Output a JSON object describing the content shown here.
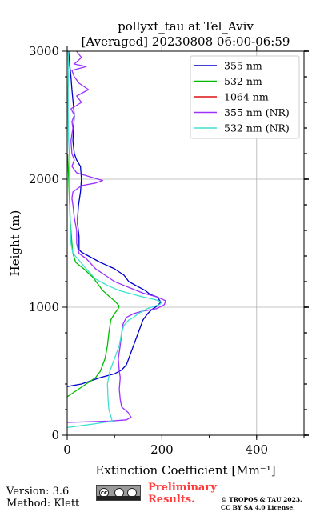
{
  "chart_data": {
    "type": "line",
    "title_line1": "pollyxt_tau at Tel_Aviv",
    "title_line2": "[Averaged] 20230808 06:00-06:59",
    "xlabel": "Extinction Coefficient [Mm⁻¹]",
    "ylabel": "Height (m)",
    "xlim": [
      0,
      500
    ],
    "ylim": [
      0,
      3000
    ],
    "x_ticks": [
      "0",
      "200",
      "400"
    ],
    "y_ticks": [
      "0",
      "1000",
      "2000",
      "3000"
    ],
    "grid": true,
    "legend_position": "top-right",
    "series": [
      {
        "name": "355 nm",
        "color": "#0000cc",
        "points": [
          [
            0,
            380
          ],
          [
            30,
            400
          ],
          [
            70,
            450
          ],
          [
            100,
            480
          ],
          [
            115,
            510
          ],
          [
            125,
            550
          ],
          [
            130,
            600
          ],
          [
            140,
            700
          ],
          [
            150,
            800
          ],
          [
            160,
            900
          ],
          [
            170,
            950
          ],
          [
            178,
            980
          ],
          [
            190,
            1010
          ],
          [
            198,
            1040
          ],
          [
            190,
            1080
          ],
          [
            175,
            1100
          ],
          [
            165,
            1130
          ],
          [
            150,
            1160
          ],
          [
            130,
            1200
          ],
          [
            120,
            1250
          ],
          [
            100,
            1300
          ],
          [
            70,
            1350
          ],
          [
            45,
            1400
          ],
          [
            30,
            1430
          ],
          [
            25,
            1450
          ],
          [
            25,
            1550
          ],
          [
            22,
            1650
          ],
          [
            22,
            1700
          ],
          [
            24,
            1800
          ],
          [
            28,
            1900
          ],
          [
            30,
            2000
          ],
          [
            28,
            2100
          ],
          [
            20,
            2150
          ],
          [
            15,
            2200
          ],
          [
            12,
            2300
          ],
          [
            15,
            2500
          ],
          [
            10,
            2700
          ],
          [
            8,
            2800
          ],
          [
            5,
            2900
          ],
          [
            3,
            3000
          ]
        ]
      },
      {
        "name": "532 nm",
        "color": "#00bb00",
        "points": [
          [
            0,
            300
          ],
          [
            20,
            350
          ],
          [
            40,
            400
          ],
          [
            60,
            450
          ],
          [
            70,
            500
          ],
          [
            80,
            600
          ],
          [
            85,
            700
          ],
          [
            88,
            800
          ],
          [
            92,
            900
          ],
          [
            100,
            950
          ],
          [
            108,
            990
          ],
          [
            110,
            1010
          ],
          [
            100,
            1050
          ],
          [
            90,
            1080
          ],
          [
            75,
            1130
          ],
          [
            65,
            1180
          ],
          [
            55,
            1230
          ],
          [
            35,
            1300
          ],
          [
            18,
            1350
          ],
          [
            12,
            1420
          ],
          [
            10,
            1500
          ],
          [
            8,
            1600
          ],
          [
            6,
            1700
          ],
          [
            5,
            1800
          ],
          [
            4,
            1900
          ],
          [
            3,
            2000
          ],
          [
            2,
            2100
          ],
          [
            1,
            2200
          ]
        ]
      },
      {
        "name": "1064 nm",
        "color": "#dd1111",
        "points": []
      },
      {
        "name": "355 nm (NR)",
        "color": "#9b30ff",
        "points": [
          [
            0,
            100
          ],
          [
            90,
            110
          ],
          [
            125,
            120
          ],
          [
            135,
            140
          ],
          [
            128,
            180
          ],
          [
            115,
            220
          ],
          [
            112,
            280
          ],
          [
            110,
            360
          ],
          [
            112,
            450
          ],
          [
            110,
            500
          ],
          [
            108,
            600
          ],
          [
            112,
            700
          ],
          [
            115,
            800
          ],
          [
            118,
            870
          ],
          [
            125,
            920
          ],
          [
            140,
            950
          ],
          [
            160,
            970
          ],
          [
            190,
            990
          ],
          [
            205,
            1020
          ],
          [
            208,
            1050
          ],
          [
            190,
            1080
          ],
          [
            160,
            1110
          ],
          [
            140,
            1140
          ],
          [
            120,
            1170
          ],
          [
            100,
            1200
          ],
          [
            80,
            1250
          ],
          [
            60,
            1300
          ],
          [
            40,
            1380
          ],
          [
            25,
            1420
          ],
          [
            20,
            1500
          ],
          [
            20,
            1600
          ],
          [
            15,
            1700
          ],
          [
            12,
            1800
          ],
          [
            10,
            1850
          ],
          [
            12,
            1900
          ],
          [
            30,
            1950
          ],
          [
            60,
            1970
          ],
          [
            75,
            1990
          ],
          [
            65,
            2000
          ],
          [
            20,
            2050
          ],
          [
            10,
            2100
          ],
          [
            15,
            2150
          ],
          [
            10,
            2200
          ],
          [
            8,
            2300
          ],
          [
            12,
            2400
          ],
          [
            10,
            2450
          ],
          [
            15,
            2500
          ],
          [
            8,
            2550
          ],
          [
            30,
            2600
          ],
          [
            20,
            2650
          ],
          [
            45,
            2700
          ],
          [
            25,
            2750
          ],
          [
            15,
            2800
          ],
          [
            10,
            2850
          ],
          [
            40,
            2880
          ],
          [
            15,
            2900
          ],
          [
            30,
            2950
          ],
          [
            20,
            3000
          ]
        ]
      },
      {
        "name": "532 nm (NR)",
        "color": "#40e0d0",
        "points": [
          [
            0,
            60
          ],
          [
            20,
            70
          ],
          [
            60,
            90
          ],
          [
            95,
            110
          ],
          [
            92,
            150
          ],
          [
            88,
            200
          ],
          [
            86,
            300
          ],
          [
            85,
            400
          ],
          [
            90,
            500
          ],
          [
            100,
            600
          ],
          [
            110,
            700
          ],
          [
            115,
            800
          ],
          [
            120,
            860
          ],
          [
            130,
            900
          ],
          [
            140,
            920
          ],
          [
            150,
            950
          ],
          [
            170,
            990
          ],
          [
            195,
            1020
          ],
          [
            200,
            1040
          ],
          [
            185,
            1060
          ],
          [
            160,
            1080
          ],
          [
            140,
            1100
          ],
          [
            110,
            1130
          ],
          [
            85,
            1170
          ],
          [
            60,
            1220
          ],
          [
            40,
            1300
          ],
          [
            22,
            1380
          ],
          [
            12,
            1420
          ],
          [
            8,
            1500
          ],
          [
            6,
            1700
          ],
          [
            5,
            1900
          ],
          [
            4,
            2000
          ],
          [
            5,
            2150
          ],
          [
            3,
            2300
          ],
          [
            2,
            2500
          ],
          [
            2,
            2700
          ],
          [
            3,
            2850
          ],
          [
            2,
            3000
          ]
        ]
      }
    ]
  },
  "footer": {
    "version": "Version: 3.6",
    "method": "Method: Klett",
    "prelim_line1": "Preliminary",
    "prelim_line2": "Results.",
    "copyright_line1": "© TROPOS & TAU 2023.",
    "copyright_line2": "CC BY SA 4.0 License.",
    "badge_text": "cc"
  }
}
